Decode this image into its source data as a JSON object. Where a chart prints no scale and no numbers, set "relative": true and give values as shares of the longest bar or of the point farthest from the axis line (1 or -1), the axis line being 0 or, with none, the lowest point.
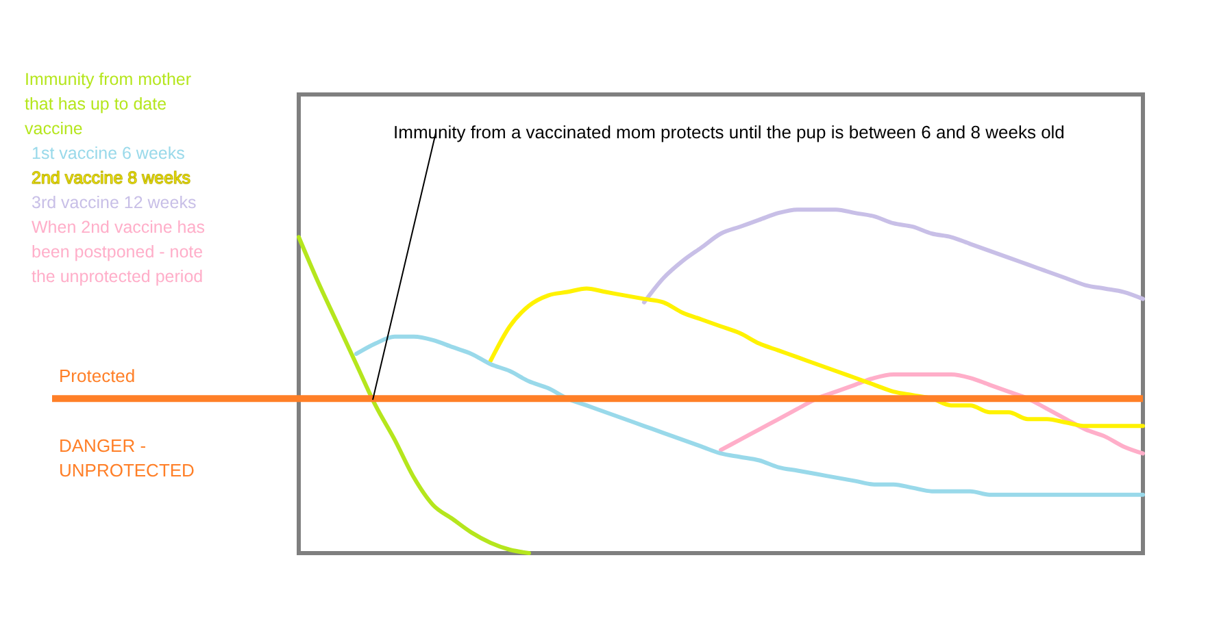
{
  "chart_data": {
    "type": "line",
    "relative": true,
    "legend": "left",
    "grid": false,
    "marker": "none",
    "line_style": "solid",
    "categories": [
      null,
      null,
      null,
      null,
      null,
      null,
      null,
      null,
      null,
      null,
      null,
      null,
      null,
      null,
      null,
      null,
      null,
      null,
      null,
      null,
      null,
      null,
      null,
      null,
      null,
      null,
      null,
      null,
      null,
      null,
      null,
      null,
      null,
      null,
      null,
      null,
      null,
      null,
      null,
      null,
      null,
      null,
      null,
      null,
      null
    ],
    "series": [
      {
        "name": "Immunity from mother that has up to date vaccine",
        "color": "#b5e61d",
        "values": [
          0.92,
          0.79,
          0.67,
          0.55,
          0.43,
          0.33,
          0.22,
          0.14,
          0.1,
          0.06,
          0.03,
          0.01,
          0,
          null,
          null,
          null,
          null,
          null,
          null,
          null,
          null,
          null,
          null,
          null,
          null,
          null,
          null,
          null,
          null,
          null,
          null,
          null,
          null,
          null,
          null,
          null,
          null,
          null,
          null,
          null,
          null,
          null,
          null,
          null,
          null
        ]
      },
      {
        "name": "1st vaccine 6 weeks",
        "color": "#99d9ea",
        "values": [
          null,
          null,
          null,
          0.58,
          0.61,
          0.63,
          0.63,
          0.62,
          0.6,
          0.58,
          0.55,
          0.53,
          0.5,
          0.48,
          0.45,
          0.43,
          0.41,
          0.39,
          0.37,
          0.35,
          0.33,
          0.31,
          0.29,
          0.28,
          0.27,
          0.25,
          0.24,
          0.23,
          0.22,
          0.21,
          0.2,
          0.2,
          0.19,
          0.18,
          0.18,
          0.18,
          0.17,
          0.17,
          0.17,
          0.17,
          0.17,
          0.17,
          0.17,
          0.17,
          0.17
        ]
      },
      {
        "name": "2nd vaccine 8 weeks",
        "color": "#fff200",
        "values": [
          null,
          null,
          null,
          null,
          null,
          null,
          null,
          null,
          null,
          null,
          0.56,
          0.66,
          0.72,
          0.75,
          0.76,
          0.77,
          0.76,
          0.75,
          0.74,
          0.73,
          0.7,
          0.68,
          0.66,
          0.64,
          0.61,
          0.59,
          0.57,
          0.55,
          0.53,
          0.51,
          0.49,
          0.47,
          0.46,
          0.45,
          0.43,
          0.43,
          0.41,
          0.41,
          0.39,
          0.39,
          0.38,
          0.37,
          0.37,
          0.37,
          0.37
        ]
      },
      {
        "name": "3rd vaccine 12 weeks",
        "color": "#c8bfe7",
        "values": [
          null,
          null,
          null,
          null,
          null,
          null,
          null,
          null,
          null,
          null,
          null,
          null,
          null,
          null,
          null,
          null,
          null,
          null,
          0.73,
          0.8,
          0.85,
          0.89,
          0.93,
          0.95,
          0.97,
          0.99,
          1,
          1,
          1,
          0.99,
          0.98,
          0.96,
          0.95,
          0.93,
          0.92,
          0.9,
          0.88,
          0.86,
          0.84,
          0.82,
          0.8,
          0.78,
          0.77,
          0.76,
          0.74
        ]
      },
      {
        "name": "When 2nd vaccine has been postponed - note the unprotected period",
        "color": "#ffaec9",
        "values": [
          null,
          null,
          null,
          null,
          null,
          null,
          null,
          null,
          null,
          null,
          null,
          null,
          null,
          null,
          null,
          null,
          null,
          null,
          null,
          null,
          null,
          null,
          0.3,
          0.33,
          0.36,
          0.39,
          0.42,
          0.45,
          0.47,
          0.49,
          0.51,
          0.52,
          0.52,
          0.52,
          0.52,
          0.51,
          0.49,
          0.47,
          0.45,
          0.42,
          0.39,
          0.36,
          0.34,
          0.31,
          0.29
        ]
      }
    ],
    "ref_lines": [
      {
        "axis": "y",
        "value": 0.45,
        "label": "Protected",
        "color": "#ff7f27"
      }
    ],
    "annotations": [
      "Immunity from a vaccinated mom protects until the pup is between 6 and 8 weeks old",
      "DANGER - UNPROTECTED"
    ]
  }
}
